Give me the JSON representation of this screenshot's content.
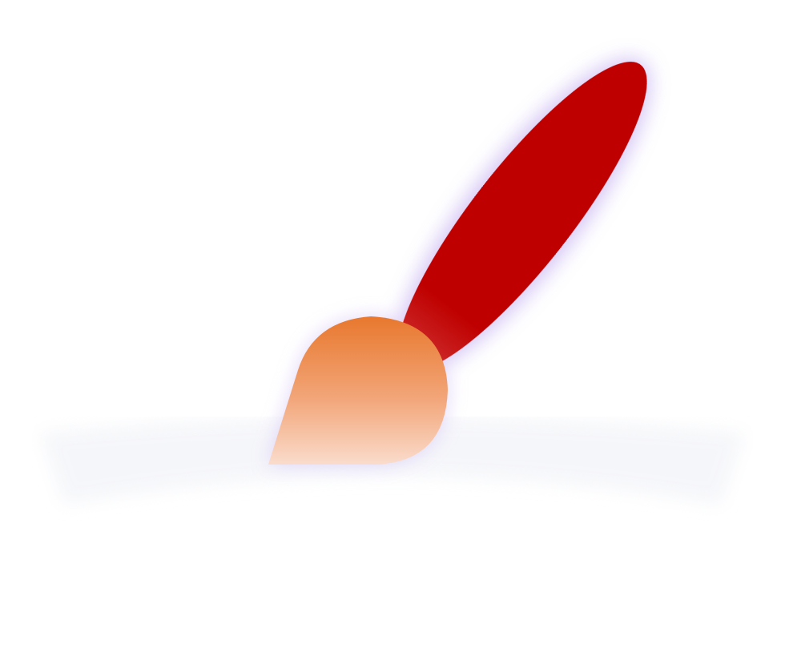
{
  "icon": {
    "name": "paintbrush-icon",
    "colors": {
      "handle": "#bf0000",
      "ferrule_top": "#e8782e",
      "ferrule_bottom": "#fadccc",
      "glow": "#c9b6f2",
      "shadow": "#eef0f6",
      "background": "#ffffff"
    }
  }
}
